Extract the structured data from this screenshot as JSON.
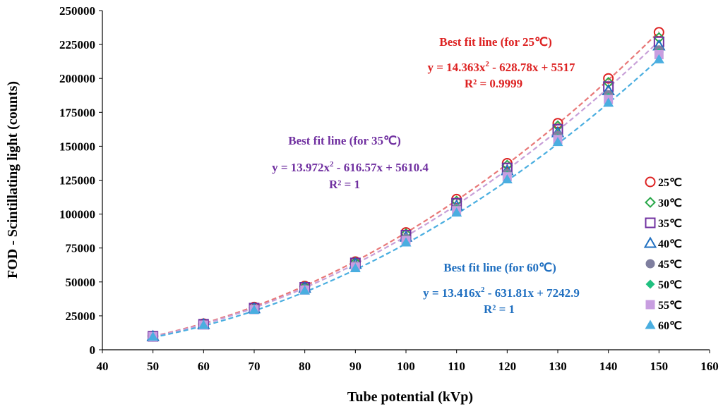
{
  "chart_data": {
    "type": "scatter",
    "xlabel": "Tube potential (kVp)",
    "ylabel": "FOD - Scintillating light (counts)",
    "xlim": [
      40,
      160
    ],
    "ylim": [
      0,
      250000
    ],
    "x_ticks": [
      "40",
      "50",
      "60",
      "70",
      "80",
      "90",
      "100",
      "110",
      "120",
      "130",
      "140",
      "150",
      "160"
    ],
    "y_ticks": [
      "0",
      "25000",
      "50000",
      "75000",
      "100000",
      "125000",
      "150000",
      "175000",
      "200000",
      "225000",
      "250000"
    ],
    "x": [
      50,
      60,
      70,
      80,
      90,
      100,
      110,
      120,
      130,
      140,
      150
    ],
    "series": [
      {
        "name": "25℃",
        "marker": "circle-open",
        "color": "#dd2222",
        "values": [
          10050,
          19200,
          31500,
          47000,
          65000,
          86500,
          111000,
          137500,
          167000,
          200000,
          234000
        ]
      },
      {
        "name": "30℃",
        "marker": "diamond-open",
        "color": "#2aa84a",
        "values": [
          10000,
          19000,
          31000,
          46500,
          64500,
          85500,
          109500,
          136000,
          165000,
          197000,
          230000
        ]
      },
      {
        "name": "35℃",
        "marker": "square-open",
        "color": "#7030a0",
        "values": [
          9900,
          18800,
          30700,
          46000,
          64000,
          84500,
          108000,
          134000,
          162500,
          194000,
          227000
        ]
      },
      {
        "name": "40℃",
        "marker": "triangle-open",
        "color": "#1f6fc0",
        "values": [
          9800,
          18600,
          30300,
          45400,
          63000,
          83000,
          106000,
          132000,
          160000,
          191000,
          224000
        ]
      },
      {
        "name": "45℃",
        "marker": "circle-filled",
        "color": "#7f7f9f",
        "values": [
          9700,
          18400,
          30000,
          44800,
          62000,
          82000,
          104500,
          130000,
          158000,
          188000,
          221000
        ]
      },
      {
        "name": "50℃",
        "marker": "diamond-filled",
        "color": "#20c080",
        "values": [
          9650,
          18300,
          29800,
          44400,
          61500,
          81000,
          103500,
          128500,
          156000,
          186000,
          219000
        ]
      },
      {
        "name": "55℃",
        "marker": "square-filled",
        "color": "#c89ee0",
        "values": [
          9600,
          18200,
          29600,
          44000,
          61000,
          80500,
          102500,
          127500,
          155000,
          184500,
          217500
        ]
      },
      {
        "name": "60℃",
        "marker": "triangle-filled",
        "color": "#4aaee0",
        "values": [
          9550,
          18100,
          29300,
          43600,
          60000,
          79000,
          101000,
          125500,
          153000,
          182000,
          214000
        ]
      }
    ],
    "fit_lines": [
      {
        "name": "fit-25",
        "color": "#e87878",
        "a": 14.363,
        "b": -628.78,
        "c": 5517
      },
      {
        "name": "fit-35",
        "color": "#c8a0d8",
        "a": 13.972,
        "b": -616.57,
        "c": 5610.4
      },
      {
        "name": "fit-60",
        "color": "#4aaee0",
        "a": 13.416,
        "b": -631.81,
        "c": 7242.9
      }
    ],
    "annotations": {
      "fit25": {
        "title": "Best fit line (for 25℃)",
        "eq_a": "y = 14.363x",
        "eq_b": " - 628.78x + 5517",
        "r2": "R² = 0.9999",
        "color": "#dd2222"
      },
      "fit35": {
        "title": "Best fit line (for 35℃)",
        "eq_a": "y = 13.972x",
        "eq_b": " - 616.57x + 5610.4",
        "r2": "R² = 1",
        "color": "#7030a0"
      },
      "fit60": {
        "title": "Best fit line (for 60℃)",
        "eq_a": "y = 13.416x",
        "eq_b": " - 631.81x + 7242.9",
        "r2": "R² = 1",
        "color": "#1f6fc0"
      },
      "superscript": "2"
    },
    "grid": false,
    "legend_position": "right"
  }
}
